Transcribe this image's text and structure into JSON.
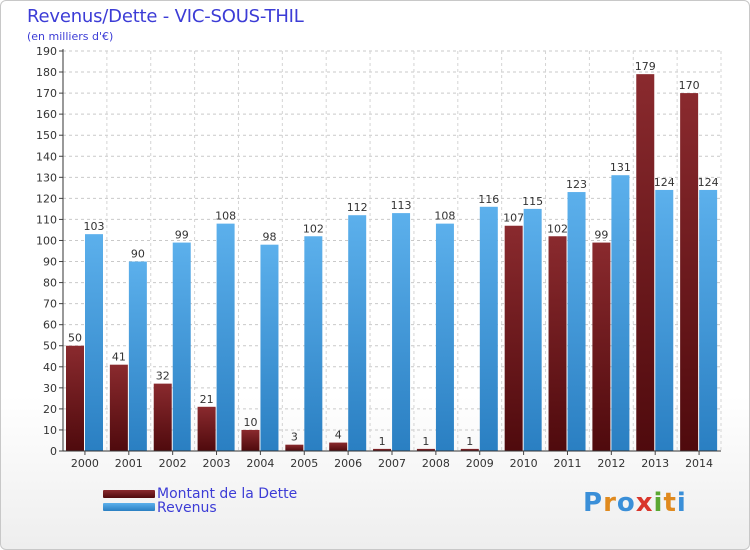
{
  "title": "Revenus/Dette - VIC-SOUS-THIL",
  "subtitle": "(en milliers d'€)",
  "legend": {
    "debt_label": "Montant de la Dette",
    "revenue_label": "Revenus"
  },
  "logo": [
    "P",
    "r",
    "o",
    "x",
    "i",
    "t",
    "i"
  ],
  "colors": {
    "debt": "#7a1e22",
    "debt_dark": "#5a0f12",
    "revenue": "#55a9e6",
    "revenue_dark": "#2f86c8",
    "text": "#3c3cd6"
  },
  "chart_data": {
    "type": "bar",
    "title": "Revenus/Dette - VIC-SOUS-THIL",
    "ylabel": "(en milliers d'€)",
    "xlabel": "",
    "ylim": [
      0,
      190
    ],
    "ytick_step": 10,
    "grid": true,
    "legend_position": "bottom-left",
    "categories": [
      "2000",
      "2001",
      "2002",
      "2003",
      "2004",
      "2005",
      "2006",
      "2007",
      "2008",
      "2009",
      "2010",
      "2011",
      "2012",
      "2013",
      "2014"
    ],
    "series": [
      {
        "name": "Montant de la Dette",
        "values": [
          50,
          41,
          32,
          21,
          10,
          3,
          4,
          1,
          1,
          1,
          107,
          102,
          99,
          179,
          170
        ]
      },
      {
        "name": "Revenus",
        "values": [
          103,
          90,
          99,
          108,
          98,
          102,
          112,
          113,
          108,
          116,
          115,
          123,
          131,
          124,
          124
        ]
      }
    ]
  }
}
